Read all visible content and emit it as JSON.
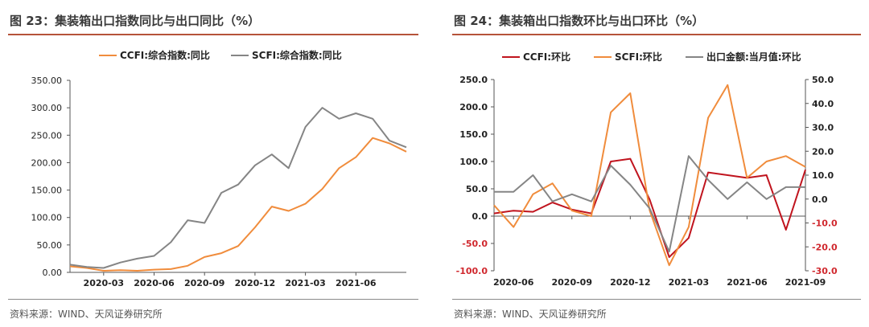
{
  "left": {
    "title": "图 23：集装箱出口指数同比与出口同比（%）",
    "source": "资料来源：WIND、天风证券研究所"
  },
  "right": {
    "title": "图 24：集装箱出口指数环比与出口环比（%）",
    "source": "资料来源：WIND、天风证券研究所"
  },
  "colors": {
    "orange": "#f08c3c",
    "gray": "#858585",
    "darkred": "#c0141e",
    "accent_rule": "#b5533a",
    "axis_red": "#d0282e"
  },
  "chart_data": [
    {
      "type": "line",
      "title": "",
      "xlabel": "",
      "ylabel": "",
      "ylim": [
        0,
        350
      ],
      "yticks": [
        "350.00",
        "300.00",
        "250.00",
        "200.00",
        "150.00",
        "100.00",
        "50.00",
        "0.00"
      ],
      "xticks": [
        "2020-03",
        "2020-06",
        "2020-09",
        "2020-12",
        "2021-03",
        "2021-06"
      ],
      "xrange": [
        "2020-01",
        "2021-09"
      ],
      "legend_position": "top",
      "series": [
        {
          "name": "CCFI:综合指数:同比",
          "color": "#f08c3c",
          "x": [
            "2020-01",
            "2020-02",
            "2020-03",
            "2020-04",
            "2020-05",
            "2020-06",
            "2020-07",
            "2020-08",
            "2020-09",
            "2020-10",
            "2020-11",
            "2020-12",
            "2021-01",
            "2021-02",
            "2021-03",
            "2021-04",
            "2021-05",
            "2021-06",
            "2021-07",
            "2021-08",
            "2021-09"
          ],
          "values": [
            11,
            8,
            3,
            4,
            3,
            5,
            6,
            12,
            28,
            35,
            48,
            82,
            120,
            112,
            125,
            152,
            190,
            210,
            245,
            235,
            220
          ]
        },
        {
          "name": "SCFI:综合指数:同比",
          "color": "#858585",
          "x": [
            "2020-01",
            "2020-02",
            "2020-03",
            "2020-04",
            "2020-05",
            "2020-06",
            "2020-07",
            "2020-08",
            "2020-09",
            "2020-10",
            "2020-11",
            "2020-12",
            "2021-01",
            "2021-02",
            "2021-03",
            "2021-04",
            "2021-05",
            "2021-06",
            "2021-07",
            "2021-08",
            "2021-09"
          ],
          "values": [
            14,
            10,
            8,
            18,
            25,
            30,
            55,
            95,
            90,
            145,
            160,
            195,
            215,
            190,
            265,
            300,
            280,
            290,
            280,
            240,
            228
          ]
        }
      ]
    },
    {
      "type": "line",
      "title": "",
      "xlabel": "",
      "ylabel": "",
      "ylim_left": [
        -100,
        250
      ],
      "ylim_right": [
        -30,
        50
      ],
      "yticks_left": [
        "250.0",
        "200.0",
        "150.0",
        "100.0",
        "50.0",
        "0.0",
        "-50.0",
        "-100.0"
      ],
      "yticks_right": [
        "50.0",
        "40.0",
        "30.0",
        "20.0",
        "10.0",
        "0.0",
        "-10.0",
        "-20.0",
        "-30.0"
      ],
      "xticks": [
        "2020-06",
        "2020-09",
        "2020-12",
        "2021-03",
        "2021-06",
        "2021-09"
      ],
      "xrange": [
        "2020-05",
        "2021-09"
      ],
      "legend_position": "top",
      "series": [
        {
          "name": "CCFI:环比",
          "color": "#c0141e",
          "axis": "left",
          "x": [
            "2020-05",
            "2020-06",
            "2020-07",
            "2020-08",
            "2020-09",
            "2020-10",
            "2020-11",
            "2020-12",
            "2021-01",
            "2021-02",
            "2021-03",
            "2021-04",
            "2021-05",
            "2021-06",
            "2021-07",
            "2021-08",
            "2021-09"
          ],
          "values": [
            5,
            10,
            8,
            25,
            12,
            5,
            100,
            105,
            30,
            -75,
            -40,
            80,
            75,
            70,
            75,
            -25,
            85
          ]
        },
        {
          "name": "SCFI:环比",
          "color": "#f08c3c",
          "axis": "left",
          "x": [
            "2020-05",
            "2020-06",
            "2020-07",
            "2020-08",
            "2020-09",
            "2020-10",
            "2020-11",
            "2020-12",
            "2021-01",
            "2021-02",
            "2021-03",
            "2021-04",
            "2021-05",
            "2021-06",
            "2021-07",
            "2021-08",
            "2021-09"
          ],
          "values": [
            20,
            -20,
            40,
            60,
            10,
            0,
            190,
            225,
            10,
            -90,
            -20,
            180,
            240,
            70,
            100,
            110,
            90
          ]
        },
        {
          "name": "出口金额:当月值:环比",
          "color": "#858585",
          "axis": "right",
          "x": [
            "2020-05",
            "2020-06",
            "2020-07",
            "2020-08",
            "2020-09",
            "2020-10",
            "2020-11",
            "2020-12",
            "2021-01",
            "2021-02",
            "2021-03",
            "2021-04",
            "2021-05",
            "2021-06",
            "2021-07",
            "2021-08",
            "2021-09"
          ],
          "values": [
            3,
            3,
            10,
            -1,
            2,
            -1,
            14,
            6,
            -4,
            -22,
            18,
            8,
            0,
            7,
            0,
            5,
            5
          ]
        }
      ]
    }
  ]
}
